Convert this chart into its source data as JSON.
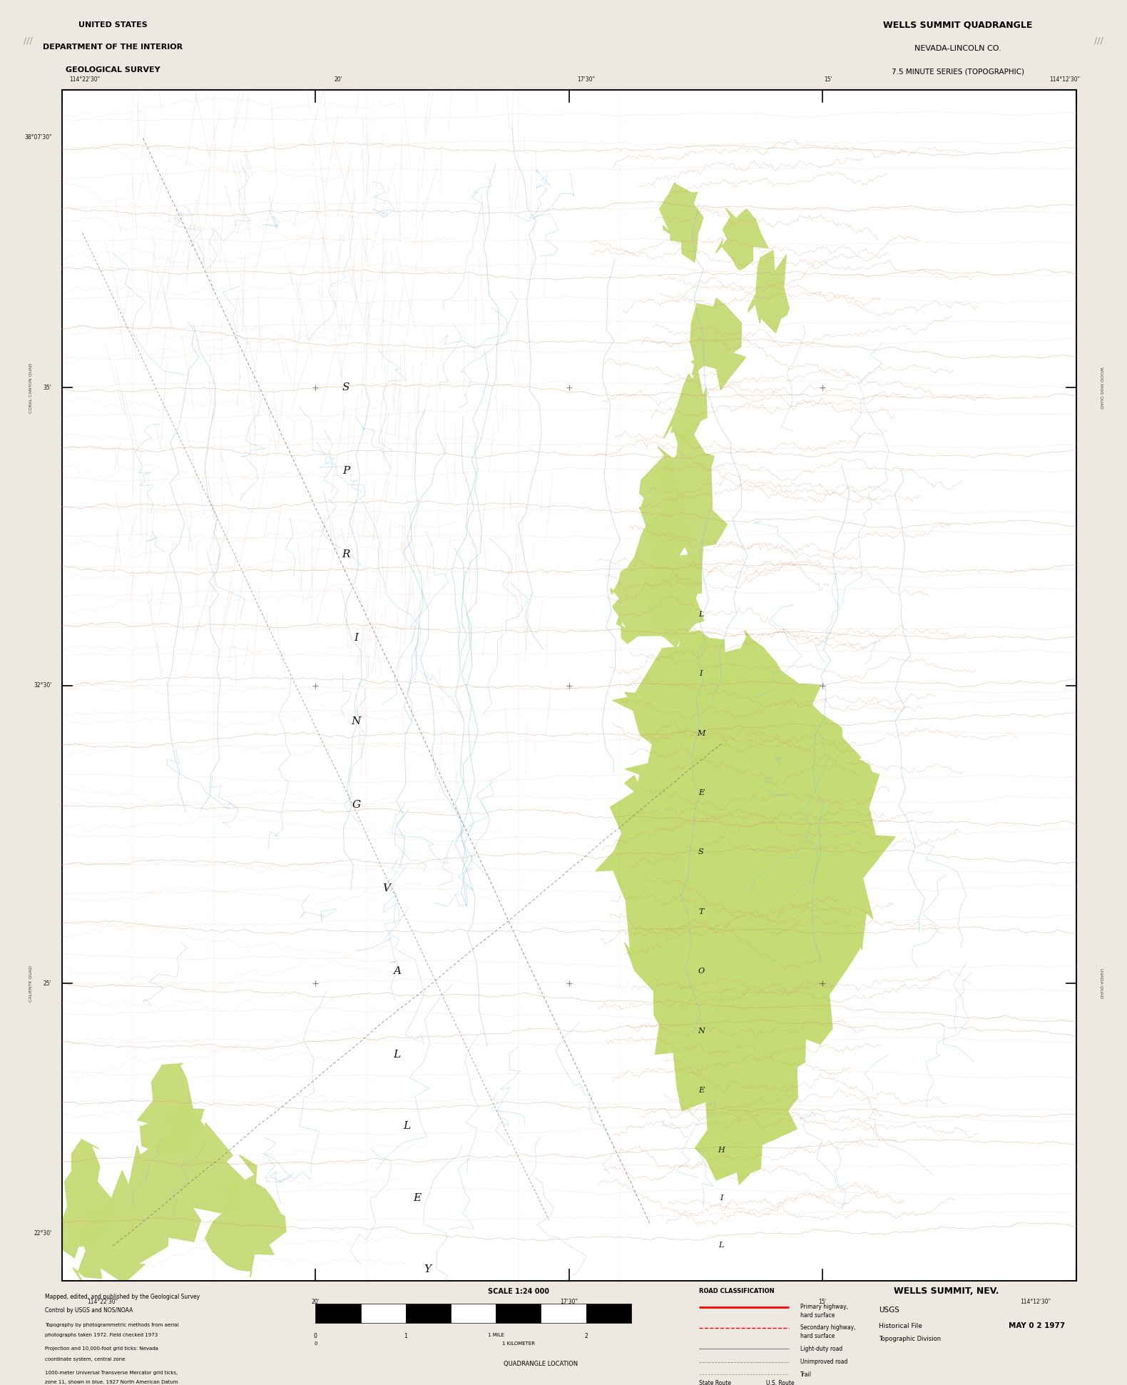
{
  "title_left_line1": "UNITED STATES",
  "title_left_line2": "DEPARTMENT OF THE INTERIOR",
  "title_left_line3": "GEOLOGICAL SURVEY",
  "title_right_line1": "WELLS SUMMIT QUADRANGLE",
  "title_right_line2": "NEVADA-LINCOLN CO.",
  "title_right_line3": "7.5 MINUTE SERIES (TOPOGRAPHIC)",
  "bottom_name": "WELLS SUMMIT, NEV.",
  "bottom_date": "MAY 0 2 1977",
  "scale_text": "SCALE 1:24000",
  "bg_color": "#f7f5f0",
  "map_bg": "#ffffff",
  "green_color": "#c5db74",
  "contour_brown": "#d4976a",
  "contour_light": "#e8c5a8",
  "water_blue": "#7abfdc",
  "border_color": "#1a1a1a",
  "text_color": "#000000",
  "margin_color": "#ede8e0",
  "road_gray": "#888888",
  "coord_labels_left": [
    "38°07'30\"",
    "35'",
    "32°30'",
    "25'",
    "22°30'"
  ],
  "coord_labels_bottom": [
    "114°22'30\"",
    "20'",
    "17'30\"",
    "15'",
    "114°12'30\""
  ]
}
